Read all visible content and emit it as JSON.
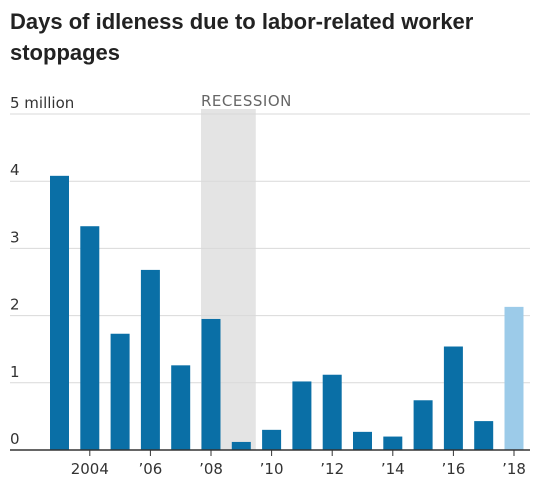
{
  "title": "Days of idleness due to labor-related worker stoppages",
  "chart_data": {
    "type": "bar",
    "title": "Days of idleness due to labor-related worker stoppages",
    "ylabel": "",
    "xlabel": "",
    "categories": [
      "2003",
      "2004",
      "2005",
      "2006",
      "2007",
      "2008",
      "2009",
      "2010",
      "2011",
      "2012",
      "2013",
      "2014",
      "2015",
      "2016",
      "2017",
      "2018"
    ],
    "values": [
      4.08,
      3.33,
      1.73,
      2.68,
      1.26,
      1.95,
      0.12,
      0.3,
      1.02,
      1.12,
      0.27,
      0.2,
      0.74,
      1.54,
      0.43,
      2.13
    ],
    "highlight_last": true,
    "ylim": [
      0,
      5
    ],
    "y_ticks": [
      {
        "value": 0,
        "label": "0"
      },
      {
        "value": 1,
        "label": "1"
      },
      {
        "value": 2,
        "label": "2"
      },
      {
        "value": 3,
        "label": "3"
      },
      {
        "value": 4,
        "label": "4"
      },
      {
        "value": 5,
        "label": "5 million"
      }
    ],
    "x_ticks": [
      {
        "year": "2004",
        "label": "2004"
      },
      {
        "year": "2006",
        "label": "’06"
      },
      {
        "year": "2008",
        "label": "’08"
      },
      {
        "year": "2010",
        "label": "’10"
      },
      {
        "year": "2012",
        "label": "’12"
      },
      {
        "year": "2014",
        "label": "’14"
      },
      {
        "year": "2016",
        "label": "’16"
      },
      {
        "year": "2018",
        "label": "’18"
      }
    ],
    "annotation": {
      "label": "RECESSION",
      "from": "2008",
      "to": "2009"
    },
    "grid": true,
    "colors": {
      "bar": "#0a6fa6",
      "bar_highlight": "#9ccbe9",
      "recession": "#e4e4e4",
      "grid": "#d9d9d9",
      "axis": "#333333"
    }
  }
}
